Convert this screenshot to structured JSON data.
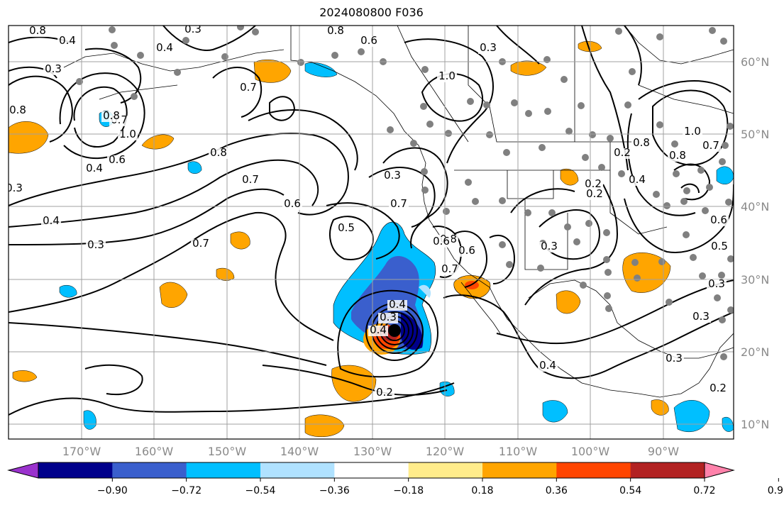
{
  "title": "2024080800 F036",
  "longitude_labels": [
    "170°W",
    "160°W",
    "150°W",
    "140°W",
    "130°W",
    "120°W",
    "110°W",
    "100°W",
    "90°W"
  ],
  "latitude_labels": [
    "60°N",
    "50°N",
    "40°N",
    "30°N",
    "20°N",
    "10°N"
  ],
  "colorbar": {
    "ticks": [
      "−0.90",
      "−0.72",
      "−0.54",
      "−0.36",
      "−0.18",
      "0.18",
      "0.36",
      "0.54",
      "0.72",
      "0.90"
    ],
    "colors": [
      "#9a32cd",
      "#00008b",
      "#3a5fcd",
      "#00bfff",
      "#b0e2ff",
      "#ffffff",
      "#ffec8b",
      "#ffa500",
      "#ff4500",
      "#b22222",
      "#ff82ab"
    ]
  },
  "contour_labels": [
    "0.8",
    "0.3",
    "0.4",
    "0.8",
    "0.6",
    "0.4",
    "0.3",
    "0.8",
    "0.7",
    "0.7",
    "1.0",
    "0.8",
    "1.0",
    "0.4",
    "0.6",
    "0.8",
    "0.7",
    "0.6",
    "0.4",
    "0.3",
    "0.7",
    "0.5",
    "0.3",
    "0.7",
    "0.8",
    "0.7",
    "0.6",
    "0.3",
    "0.4",
    "0.4",
    "0.3",
    "0.2",
    "0.4",
    "0.3",
    "0.3",
    "0.2",
    "0.2",
    "0.3",
    "1.0",
    "0.8",
    "0.8",
    "0.7",
    "0.6",
    "0.5",
    "0.3",
    "0.2",
    "0.4",
    "0.3",
    "0.2",
    "0.6"
  ],
  "colors": {
    "land_outline": "#000000",
    "grid": "#a0a0a0",
    "station_dot": "#808080",
    "contour": "#000000"
  }
}
